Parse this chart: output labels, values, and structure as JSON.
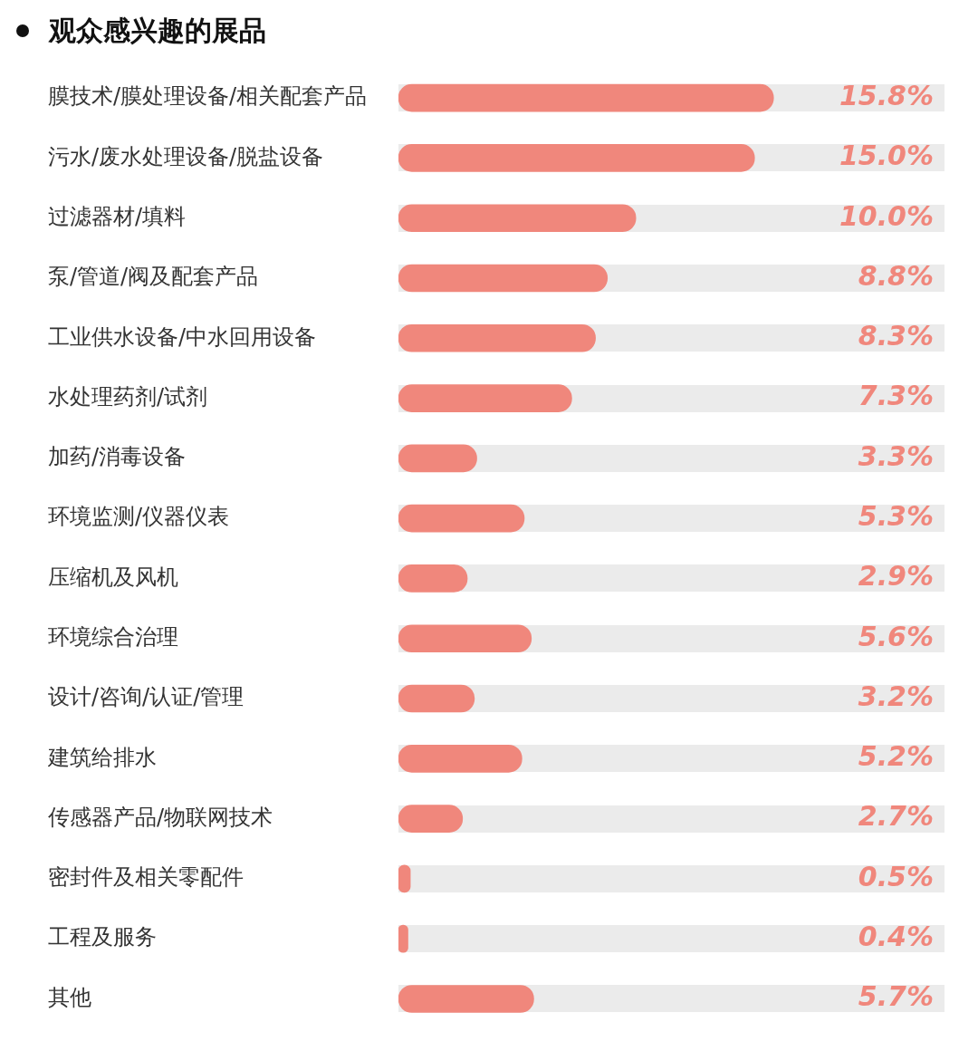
{
  "chart_data": {
    "type": "bar",
    "orientation": "horizontal",
    "title": "观众感兴趣的展品",
    "categories": [
      "膜技术/膜处理设备/相关配套产品",
      "污水/废水处理设备/脱盐设备",
      "过滤器材/填料",
      "泵/管道/阀及配套产品",
      "工业供水设备/中水回用设备",
      "水处理药剂/试剂",
      "加药/消毒设备",
      "环境监测/仪器仪表",
      "压缩机及风机",
      "环境综合治理",
      "设计/咨询/认证/管理",
      "建筑给排水",
      "传感器产品/物联网技术",
      "密封件及相关零配件",
      "工程及服务",
      "其他"
    ],
    "values": [
      15.8,
      15.0,
      10.0,
      8.8,
      8.3,
      7.3,
      3.3,
      5.3,
      2.9,
      5.6,
      3.2,
      5.2,
      2.7,
      0.5,
      0.4,
      5.7
    ],
    "value_labels": [
      "15.8%",
      "15.0%",
      "10.0%",
      "8.8%",
      "8.3%",
      "7.3%",
      "3.3%",
      "5.3%",
      "2.9%",
      "5.6%",
      "3.2%",
      "5.2%",
      "2.7%",
      "0.5%",
      "0.4%",
      "5.7%"
    ],
    "color": "#f0877c",
    "xlim": [
      0,
      23
    ],
    "tick_labels": "y"
  }
}
